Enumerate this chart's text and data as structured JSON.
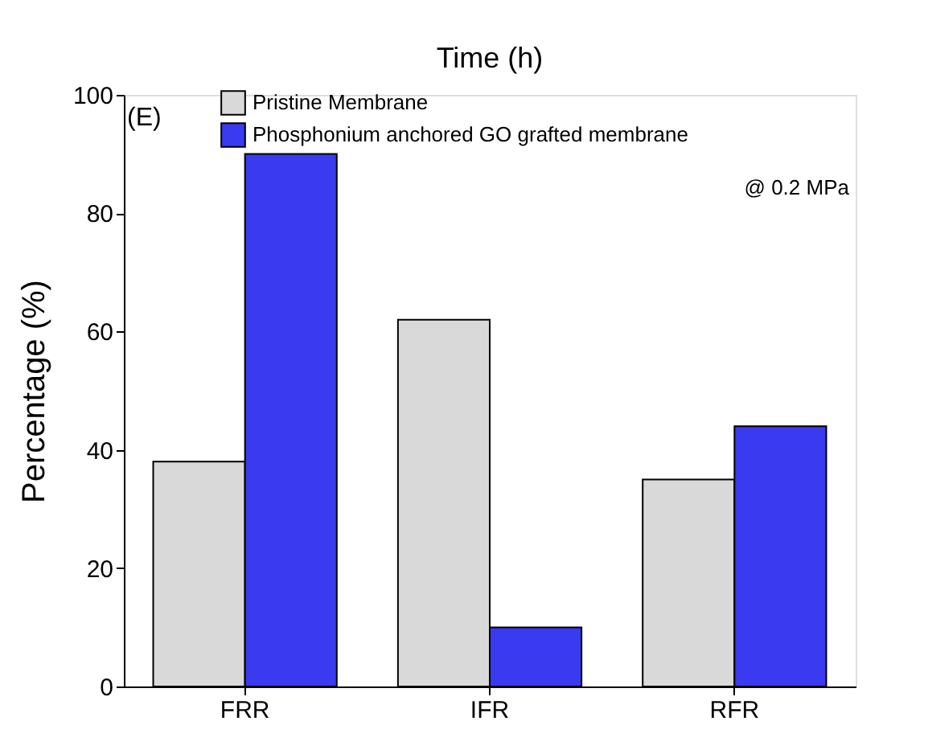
{
  "chart_data": {
    "type": "bar",
    "ylabel": "Percentage (%)",
    "categories": [
      "FRR",
      "IFR",
      "RFR"
    ],
    "series": [
      {
        "name": "Pristine Membrane",
        "color": "#d9d9d9",
        "values": [
          38,
          62,
          35
        ]
      },
      {
        "name": "Phosphonium anchored GO grafted membrane",
        "color": "#3a3af0",
        "values": [
          90,
          10,
          44
        ]
      }
    ],
    "ylim": [
      0,
      100
    ],
    "yticks": [
      0,
      20,
      40,
      60,
      80,
      100
    ],
    "grid": false,
    "legend": "top left",
    "annotations": [
      "Time (h)",
      "(E)",
      "@ 0.2 MPa"
    ]
  }
}
